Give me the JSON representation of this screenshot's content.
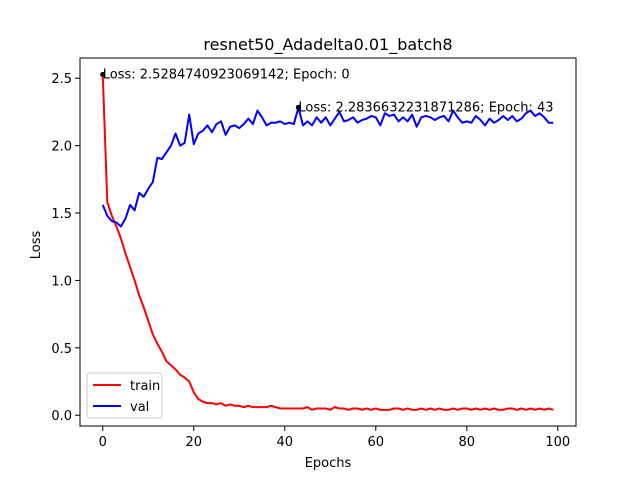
{
  "chart_data": {
    "type": "line",
    "title": "resnet50_Adadelta0.01_batch8",
    "xlabel": "Epochs",
    "ylabel": "Loss",
    "xlim": [
      -5,
      104
    ],
    "ylim": [
      -0.08,
      2.65
    ],
    "xticks": [
      0,
      20,
      40,
      60,
      80,
      100
    ],
    "yticks": [
      0.0,
      0.5,
      1.0,
      1.5,
      2.0,
      2.5
    ],
    "xtick_labels": [
      "0",
      "20",
      "40",
      "60",
      "80",
      "100"
    ],
    "ytick_labels": [
      "0.0",
      "0.5",
      "1.0",
      "1.5",
      "2.0",
      "2.5"
    ],
    "legend_position": "lower-left",
    "series": [
      {
        "name": "train",
        "color": "#ff0000",
        "x": [
          0,
          1,
          2,
          3,
          4,
          5,
          6,
          7,
          8,
          9,
          10,
          11,
          12,
          13,
          14,
          15,
          16,
          17,
          18,
          19,
          20,
          21,
          22,
          23,
          24,
          25,
          26,
          27,
          28,
          29,
          30,
          31,
          32,
          33,
          34,
          35,
          36,
          37,
          38,
          39,
          40,
          41,
          42,
          43,
          44,
          45,
          46,
          47,
          48,
          49,
          50,
          51,
          52,
          53,
          54,
          55,
          56,
          57,
          58,
          59,
          60,
          61,
          62,
          63,
          64,
          65,
          66,
          67,
          68,
          69,
          70,
          71,
          72,
          73,
          74,
          75,
          76,
          77,
          78,
          79,
          80,
          81,
          82,
          83,
          84,
          85,
          86,
          87,
          88,
          89,
          90,
          91,
          92,
          93,
          94,
          95,
          96,
          97,
          98,
          99
        ],
        "values": [
          2.528,
          1.58,
          1.48,
          1.4,
          1.31,
          1.2,
          1.1,
          1.0,
          0.89,
          0.8,
          0.7,
          0.6,
          0.53,
          0.47,
          0.4,
          0.37,
          0.34,
          0.3,
          0.28,
          0.25,
          0.17,
          0.12,
          0.1,
          0.09,
          0.09,
          0.08,
          0.09,
          0.07,
          0.08,
          0.07,
          0.07,
          0.06,
          0.07,
          0.06,
          0.06,
          0.06,
          0.06,
          0.07,
          0.06,
          0.05,
          0.05,
          0.05,
          0.05,
          0.05,
          0.05,
          0.06,
          0.04,
          0.05,
          0.05,
          0.05,
          0.04,
          0.06,
          0.05,
          0.05,
          0.04,
          0.05,
          0.05,
          0.04,
          0.05,
          0.04,
          0.05,
          0.04,
          0.04,
          0.04,
          0.05,
          0.05,
          0.04,
          0.05,
          0.04,
          0.04,
          0.05,
          0.04,
          0.05,
          0.04,
          0.05,
          0.04,
          0.04,
          0.05,
          0.04,
          0.05,
          0.05,
          0.04,
          0.05,
          0.04,
          0.05,
          0.04,
          0.05,
          0.04,
          0.04,
          0.05,
          0.05,
          0.04,
          0.05,
          0.04,
          0.05,
          0.04,
          0.05,
          0.04,
          0.05,
          0.04
        ]
      },
      {
        "name": "val",
        "color": "#0000ff",
        "x": [
          0,
          1,
          2,
          3,
          4,
          5,
          6,
          7,
          8,
          9,
          10,
          11,
          12,
          13,
          14,
          15,
          16,
          17,
          18,
          19,
          20,
          21,
          22,
          23,
          24,
          25,
          26,
          27,
          28,
          29,
          30,
          31,
          32,
          33,
          34,
          35,
          36,
          37,
          38,
          39,
          40,
          41,
          42,
          43,
          44,
          45,
          46,
          47,
          48,
          49,
          50,
          51,
          52,
          53,
          54,
          55,
          56,
          57,
          58,
          59,
          60,
          61,
          62,
          63,
          64,
          65,
          66,
          67,
          68,
          69,
          70,
          71,
          72,
          73,
          74,
          75,
          76,
          77,
          78,
          79,
          80,
          81,
          82,
          83,
          84,
          85,
          86,
          87,
          88,
          89,
          90,
          91,
          92,
          93,
          94,
          95,
          96,
          97,
          98,
          99
        ],
        "values": [
          1.56,
          1.48,
          1.44,
          1.43,
          1.4,
          1.46,
          1.56,
          1.52,
          1.65,
          1.62,
          1.68,
          1.73,
          1.91,
          1.9,
          1.95,
          2.0,
          2.09,
          2.0,
          2.02,
          2.23,
          2.01,
          2.09,
          2.11,
          2.15,
          2.1,
          2.16,
          2.18,
          2.08,
          2.14,
          2.15,
          2.13,
          2.16,
          2.2,
          2.16,
          2.26,
          2.21,
          2.15,
          2.17,
          2.17,
          2.18,
          2.16,
          2.17,
          2.16,
          2.284,
          2.15,
          2.18,
          2.15,
          2.21,
          2.17,
          2.21,
          2.15,
          2.2,
          2.25,
          2.18,
          2.19,
          2.21,
          2.17,
          2.19,
          2.2,
          2.22,
          2.21,
          2.15,
          2.24,
          2.22,
          2.23,
          2.18,
          2.21,
          2.18,
          2.23,
          2.14,
          2.21,
          2.22,
          2.21,
          2.19,
          2.21,
          2.22,
          2.18,
          2.26,
          2.21,
          2.17,
          2.18,
          2.17,
          2.22,
          2.19,
          2.15,
          2.2,
          2.17,
          2.19,
          2.22,
          2.19,
          2.22,
          2.18,
          2.2,
          2.24,
          2.26,
          2.22,
          2.24,
          2.21,
          2.17,
          2.17
        ]
      }
    ],
    "annotations": [
      {
        "x": 0,
        "y": 2.528,
        "text": "Loss: 2.5284740923069142; Epoch: 0"
      },
      {
        "x": 43,
        "y": 2.284,
        "text": "Loss: 2.2836632231871286; Epoch: 43"
      }
    ]
  }
}
